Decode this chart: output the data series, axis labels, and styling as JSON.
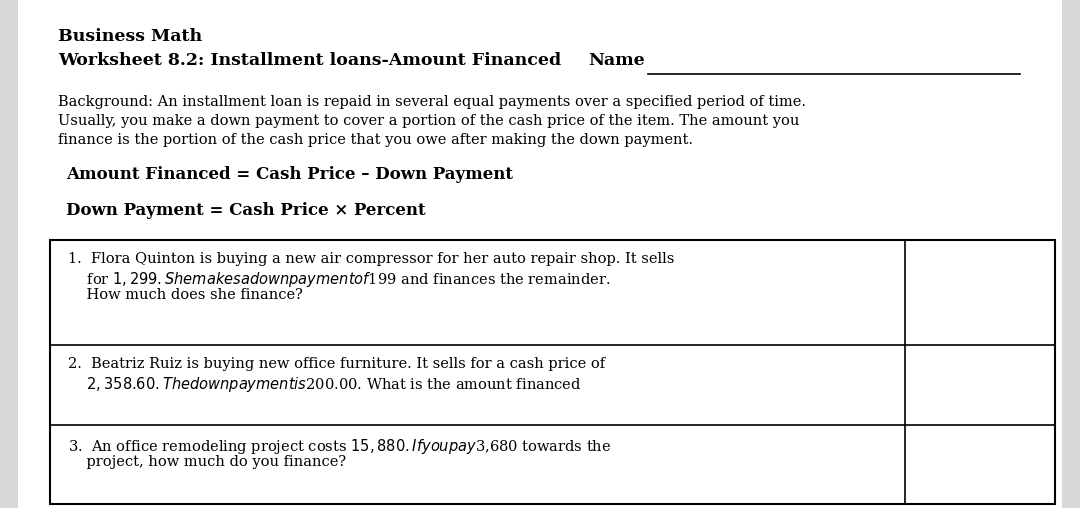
{
  "bg_color": "#d8d8d8",
  "page_bg": "#ffffff",
  "title1": "Business Math",
  "title2": "Worksheet 8.2: Installment loans-Amount Financed",
  "name_label": "Name",
  "background_text_line1": "Background: An installment loan is repaid in several equal payments over a specified period of time.",
  "background_text_line2": "Usually, you make a down payment to cover a portion of the cash price of the item. The amount you",
  "background_text_line3": "finance is the portion of the cash price that you owe after making the down payment.",
  "formula1": "Amount Financed = Cash Price – Down Payment",
  "formula2": "Down Payment = Cash Price × Percent",
  "q1_line1": "1.  Flora Quinton is buying a new air compressor for her auto repair shop. It sells",
  "q1_line2": "    for $1,299. She makes a down payment of $199 and finances the remainder.",
  "q1_line3": "    How much does she finance?",
  "q2_line1": "2.  Beatriz Ruiz is buying new office furniture. It sells for a cash price of",
  "q2_line2": "    $2,358.60. The down payment is $200.00. What is the amount financed",
  "q3_line1": "3.  An office remodeling project costs $15,880. If you pay $3,680 towards the",
  "q3_line2": "    project, how much do you finance?",
  "answer_box_color": "#ffff00",
  "border_color": "#000000",
  "text_color": "#000000",
  "font_size_title": 12.5,
  "font_size_body": 10.5,
  "font_size_formula": 12,
  "font_size_question": 10.5
}
